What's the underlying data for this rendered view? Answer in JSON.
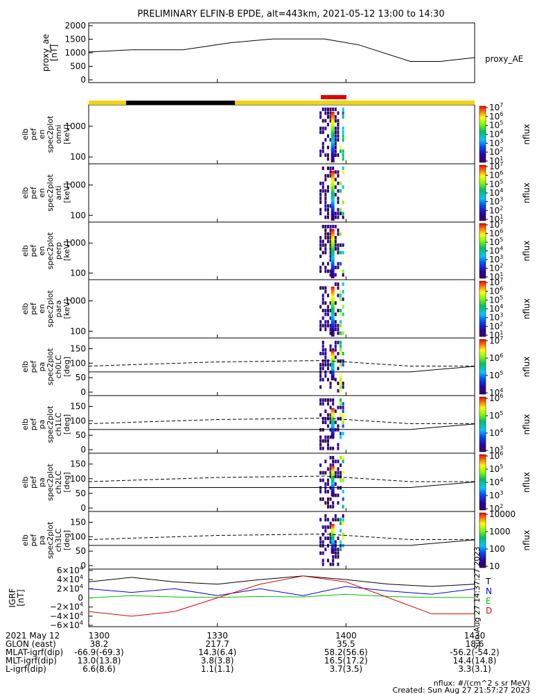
{
  "title": "PRELIMINARY ELFIN-B EPDE, alt=443km, 2021-05-12 13:00 to 14:30",
  "colors": {
    "state_bar_yellow": "#f2d40a",
    "state_bar_black": "#000000",
    "state_bar_red": "#e00000",
    "grf_T": "#000000",
    "grf_N": "#0000e0",
    "grf_E": "#00c000",
    "grf_D": "#e00000"
  },
  "chart_data": [
    {
      "type": "line",
      "name": "proxy_ae",
      "ylabel": [
        "proxy_ae",
        "[nT]"
      ],
      "ylim": [
        0,
        2000
      ],
      "yticks": [
        "0",
        "500",
        "1000",
        "1500",
        "2000"
      ],
      "legend": "proxy_AE",
      "x": [
        0,
        10,
        22,
        33,
        43,
        55,
        63,
        75,
        82,
        90
      ],
      "values": [
        1030,
        1110,
        1110,
        1370,
        1510,
        1510,
        1290,
        680,
        680,
        820
      ]
    },
    {
      "type": "heatmap",
      "name": "elb_pef_en_spec2plot_omni",
      "ylabel": [
        "elb",
        "pef",
        "en",
        "spec2plot",
        "omni",
        "[keV]"
      ],
      "yscale": "log",
      "yticks": [
        "100",
        "1000"
      ],
      "colorbar": {
        "label": "nflux",
        "ticks": [
          "10",
          "10",
          "10",
          "10",
          "10",
          "10",
          "10"
        ],
        "exp": [
          "1",
          "2",
          "3",
          "4",
          "5",
          "6",
          "7"
        ]
      }
    },
    {
      "type": "heatmap",
      "name": "elb_pef_en_spec2plot_anti",
      "ylabel": [
        "elb",
        "pef",
        "en",
        "spec2plot",
        "anti",
        "[keV]"
      ],
      "yscale": "log",
      "yticks": [
        "100",
        "1000"
      ],
      "colorbar": {
        "label": "nflux",
        "ticks": [
          "10",
          "10",
          "10",
          "10",
          "10",
          "10",
          "10"
        ],
        "exp": [
          "1",
          "2",
          "3",
          "4",
          "5",
          "6",
          "7"
        ]
      }
    },
    {
      "type": "heatmap",
      "name": "elb_pef_en_spec2plot_perp",
      "ylabel": [
        "elb",
        "pef",
        "en",
        "spec2plot",
        "perp",
        "[keV]"
      ],
      "yscale": "log",
      "yticks": [
        "100",
        "1000"
      ],
      "colorbar": {
        "label": "nflux",
        "ticks": [
          "10",
          "10",
          "10",
          "10",
          "10",
          "10",
          "10"
        ],
        "exp": [
          "1",
          "2",
          "3",
          "4",
          "5",
          "6",
          "7"
        ]
      }
    },
    {
      "type": "heatmap",
      "name": "elb_pef_en_spec2plot_para",
      "ylabel": [
        "elb",
        "pef",
        "en",
        "spec2plot",
        "para",
        "[keV]"
      ],
      "yscale": "log",
      "yticks": [
        "100",
        "1000"
      ],
      "colorbar": {
        "label": "nflux",
        "ticks": [
          "10",
          "10",
          "10",
          "10",
          "10",
          "10",
          "10"
        ],
        "exp": [
          "1",
          "2",
          "3",
          "4",
          "5",
          "6",
          "7"
        ]
      }
    },
    {
      "type": "heatmap",
      "name": "elb_pef_pa_spec2plot_ch0LC",
      "ylabel": [
        "elb",
        "pef",
        "pa",
        "spec2plot",
        "ch0LC",
        "[deg]"
      ],
      "yticks": [
        "0",
        "50",
        "100",
        "150"
      ],
      "ylim": [
        0,
        180
      ],
      "colorbar": {
        "label": "nflux",
        "ticks": [
          "10",
          "10",
          "10",
          "10"
        ],
        "exp": [
          "4",
          "5",
          "6",
          "7"
        ]
      }
    },
    {
      "type": "heatmap",
      "name": "elb_pef_pa_spec2plot_ch1LC",
      "ylabel": [
        "elb",
        "pef",
        "pa",
        "spec2plot",
        "ch1LC",
        "[deg]"
      ],
      "yticks": [
        "0",
        "50",
        "100",
        "150"
      ],
      "ylim": [
        0,
        180
      ],
      "colorbar": {
        "label": "nflux",
        "ticks": [
          "10",
          "10",
          "10",
          "10"
        ],
        "exp": [
          "3",
          "4",
          "5",
          "6"
        ]
      }
    },
    {
      "type": "heatmap",
      "name": "elb_pef_pa_spec2plot_ch2LC",
      "ylabel": [
        "elb",
        "pef",
        "pa",
        "spec2plot",
        "ch2LC",
        "[deg]"
      ],
      "yticks": [
        "0",
        "50",
        "100",
        "150"
      ],
      "ylim": [
        0,
        180
      ],
      "colorbar": {
        "label": "nflux",
        "ticks": [
          "10",
          "10",
          "10",
          "10",
          "10"
        ],
        "exp": [
          "2",
          "3",
          "4",
          "5",
          "6"
        ]
      }
    },
    {
      "type": "heatmap",
      "name": "elb_pef_pa_spec2plot_ch3LC",
      "ylabel": [
        "elb",
        "pef",
        "pa",
        "spec2plot",
        "ch3LC",
        "[deg]"
      ],
      "yticks": [
        "0",
        "50",
        "100",
        "150"
      ],
      "ylim": [
        0,
        180
      ],
      "colorbar": {
        "label": "nflux",
        "ticks": [
          "10",
          "100",
          "1000",
          "10000"
        ],
        "exp": [
          "",
          "",
          "",
          ""
        ]
      }
    },
    {
      "type": "line",
      "name": "IGRF",
      "ylabel": [
        "IGRF",
        "[nT]"
      ],
      "ylim": [
        -60000,
        60000
      ],
      "yticks": [
        "6",
        "4",
        "2",
        "0",
        "-2",
        "-4",
        "-6"
      ],
      "ytick_mult": [
        "×10",
        "×10",
        "×10",
        "",
        "−2×10",
        "−4×10",
        "−6×10"
      ],
      "legend": [
        "T",
        "N",
        "E",
        "D"
      ],
      "side_text": "Sun Aug 27 14:37:27 2023",
      "x": [
        0,
        10,
        20,
        30,
        40,
        50,
        60,
        70,
        80,
        90
      ],
      "series": [
        {
          "name": "T",
          "values": [
            35000,
            45000,
            35000,
            30000,
            40000,
            48000,
            40000,
            30000,
            25000,
            30000
          ]
        },
        {
          "name": "N",
          "values": [
            20000,
            12000,
            20000,
            5000,
            20000,
            5000,
            25000,
            15000,
            8000,
            20000
          ]
        },
        {
          "name": "E",
          "values": [
            0,
            5000,
            2000,
            1000,
            3000,
            2000,
            8000,
            3000,
            1000,
            1000
          ]
        },
        {
          "name": "D",
          "values": [
            -30000,
            -40000,
            -30000,
            0,
            30000,
            48000,
            35000,
            0,
            -35000,
            -35000
          ]
        }
      ]
    }
  ],
  "footer": {
    "rows": [
      {
        "label": "2021 May 12",
        "values": [
          "1300",
          "1330",
          "1400",
          "1430"
        ]
      },
      {
        "label": "GLON (east)",
        "values": [
          "38.2",
          "217.7",
          "35.5",
          "18.6"
        ]
      },
      {
        "label": "MLAT-igrf(dip)",
        "values": [
          "-66.9(-69.3)",
          "14.3(6.4)",
          "58.2(56.6)",
          "-56.2(-54.2)"
        ]
      },
      {
        "label": "MLT-igrf(dip)",
        "values": [
          "13.0(13.8)",
          "3.8(3.8)",
          "16.5(17.2)",
          "14.4(14.8)"
        ]
      },
      {
        "label": "L-igrf(dip)",
        "values": [
          "6.6(8.6)",
          "1.1(1.1)",
          "3.7(3.5)",
          "3.3(3.1)"
        ]
      }
    ],
    "nflux_units": "nflux: #/(cm^2 s sr MeV)",
    "created": "Created: Sun Aug 27 21:57:27 2023"
  }
}
